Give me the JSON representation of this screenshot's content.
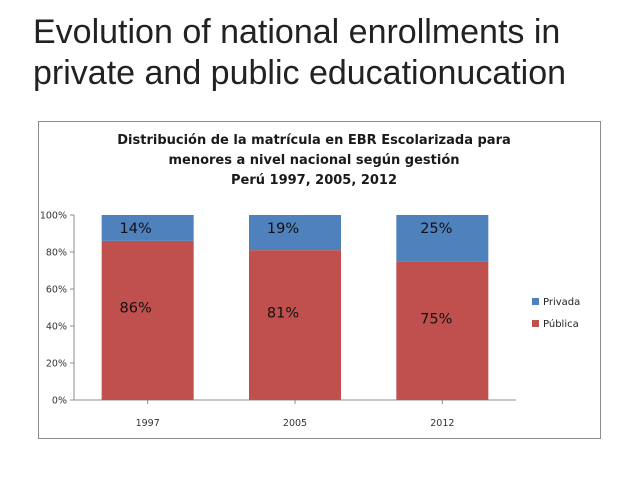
{
  "slide": {
    "title": "Evolution of national enrollments in private and public educationucation"
  },
  "chart_data": {
    "type": "bar",
    "stacked": true,
    "title_lines": [
      "Distribución de la matrícula en EBR Escolarizada para",
      "menores a nivel nacional según gestión",
      "Perú 1997, 2005, 2012"
    ],
    "categories": [
      "1997",
      "2005",
      "2012"
    ],
    "series": [
      {
        "name": "Pública",
        "color": "#C0504D",
        "values": [
          86,
          81,
          75
        ],
        "labels": [
          "86%",
          "81%",
          "75%"
        ]
      },
      {
        "name": "Privada",
        "color": "#4F81BD",
        "values": [
          14,
          19,
          25
        ],
        "labels": [
          "14%",
          "19%",
          "25%"
        ]
      }
    ],
    "legend_order": [
      "Privada",
      "Pública"
    ],
    "y_ticks": [
      "0%",
      "20%",
      "40%",
      "60%",
      "80%",
      "100%"
    ],
    "ylim": [
      0,
      100
    ],
    "legend_position": "right",
    "grid": false
  }
}
